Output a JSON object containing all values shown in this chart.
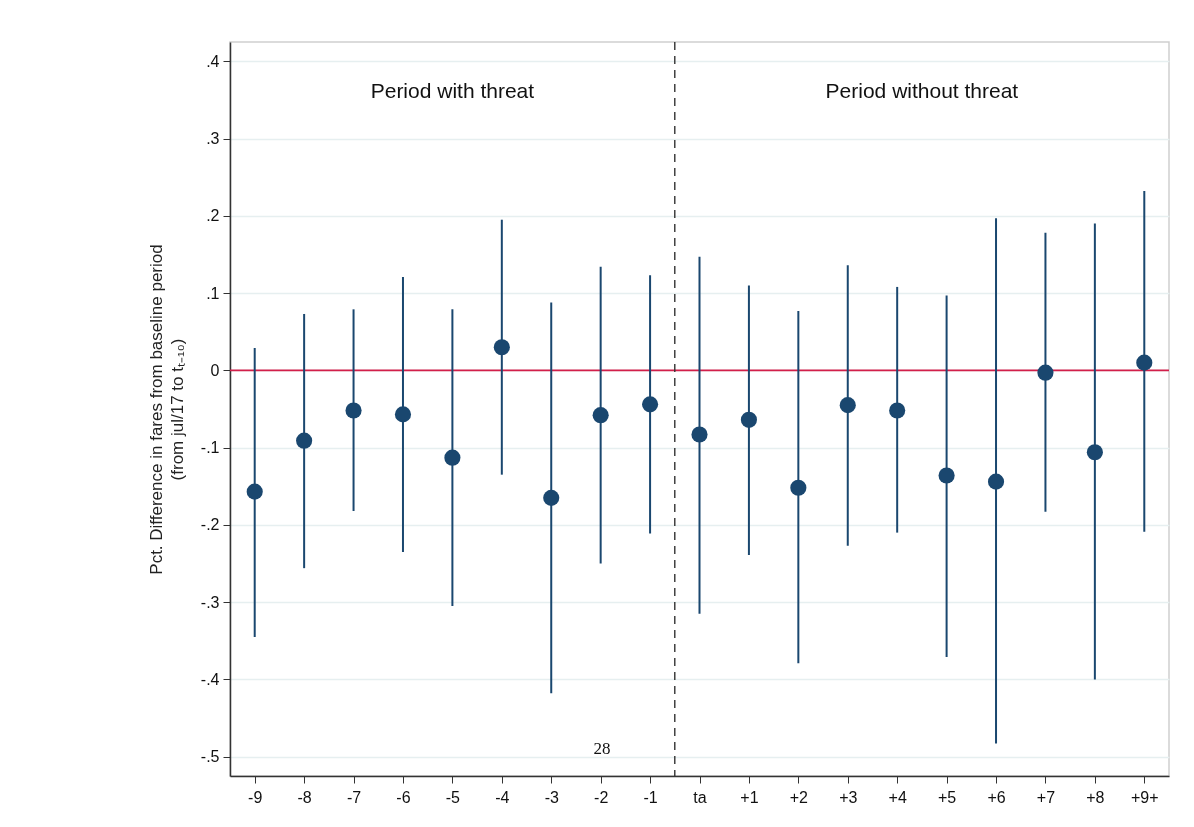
{
  "chart_data": {
    "type": "scatter",
    "ylabel": "Pct. Difference in fares from baseline period\n(from jul/17 to tₜ₋₁₀)",
    "categories": [
      "-9",
      "-8",
      "-7",
      "-6",
      "-5",
      "-4",
      "-3",
      "-2",
      "-1",
      "ta",
      "+1",
      "+2",
      "+3",
      "+4",
      "+5",
      "+6",
      "+7",
      "+8",
      "+9+"
    ],
    "series": [
      {
        "color": "#1a476f",
        "values": [
          -0.157,
          -0.091,
          -0.052,
          -0.057,
          -0.113,
          0.03,
          -0.165,
          -0.058,
          -0.044,
          -0.083,
          -0.064,
          -0.152,
          -0.045,
          -0.052,
          -0.136,
          -0.144,
          -0.003,
          -0.106,
          0.01
        ],
        "errors": [
          [
            -0.345,
            0.029
          ],
          [
            -0.256,
            0.073
          ],
          [
            -0.182,
            0.079
          ],
          [
            -0.235,
            0.121
          ],
          [
            -0.305,
            0.079
          ],
          [
            -0.135,
            0.195
          ],
          [
            -0.418,
            0.088
          ],
          [
            -0.25,
            0.134
          ],
          [
            -0.211,
            0.123
          ],
          [
            -0.315,
            0.147
          ],
          [
            -0.239,
            0.11
          ],
          [
            -0.379,
            0.077
          ],
          [
            -0.227,
            0.136
          ],
          [
            -0.21,
            0.108
          ],
          [
            -0.371,
            0.097
          ],
          [
            -0.483,
            0.197
          ],
          [
            -0.183,
            0.178
          ],
          [
            -0.4,
            0.19
          ],
          [
            -0.209,
            0.232
          ]
        ]
      }
    ],
    "ylim": [
      -0.525,
      0.425
    ],
    "yticks": [
      {
        "value": -0.5,
        "label": "-.5"
      },
      {
        "value": -0.4,
        "label": "-.4"
      },
      {
        "value": -0.3,
        "label": "-.3"
      },
      {
        "value": -0.2,
        "label": "-.2"
      },
      {
        "value": -0.1,
        "label": "-.1"
      },
      0,
      {
        "value": 0.1,
        "label": ".1"
      },
      {
        "value": 0.2,
        "label": ".2"
      },
      {
        "value": 0.3,
        "label": ".3"
      },
      {
        "value": 0.4,
        "label": ".4"
      }
    ],
    "ref_lines": [
      {
        "axis": "y",
        "value": 0,
        "color": "#d21f4a",
        "line_style": "solid"
      },
      {
        "axis": "x",
        "value": "ta",
        "color": "#333333",
        "line_style": "dashed"
      }
    ],
    "annotations": [
      "Period with threat",
      "Period without threat",
      "28"
    ],
    "grid": "y",
    "marker": "circle"
  }
}
